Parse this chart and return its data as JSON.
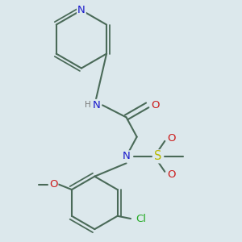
{
  "background_color": "#dce8ec",
  "bond_color": "#4a6a58",
  "bond_width": 1.5,
  "atom_colors": {
    "N": "#1a1acc",
    "O": "#cc1a1a",
    "S": "#b8b800",
    "Cl": "#22aa22",
    "H_label": "#777777"
  },
  "font_size": 8.5,
  "fig_width": 3.0,
  "fig_height": 3.0,
  "dpi": 100
}
